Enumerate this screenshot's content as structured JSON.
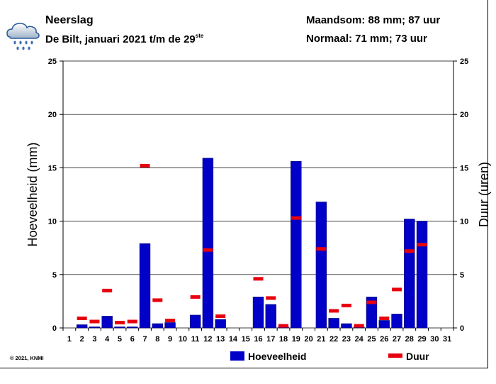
{
  "header": {
    "title": "Neerslag",
    "subtitle_main": "De Bilt, januari 2021 t/m de 29",
    "subtitle_sup": "ste",
    "maandsom": "Maandsom: 88 mm; 87 uur",
    "normaal": "Normaal: 71 mm; 73 uur"
  },
  "footer": {
    "copyright": "© 2021, KNMI"
  },
  "icon": "rain-cloud-icon",
  "colors": {
    "bar": "#0000c8",
    "duration": "#e8000d",
    "grid": "#000000"
  },
  "chart_data": {
    "type": "bar",
    "categories": [
      "1",
      "2",
      "3",
      "4",
      "5",
      "6",
      "7",
      "8",
      "9",
      "10",
      "11",
      "12",
      "13",
      "14",
      "15",
      "16",
      "17",
      "18",
      "19",
      "20",
      "21",
      "22",
      "23",
      "24",
      "25",
      "26",
      "27",
      "28",
      "29",
      "30",
      "31"
    ],
    "series": [
      {
        "name": "Hoeveelheid",
        "kind": "bar",
        "axis": "left",
        "values": [
          0,
          0.3,
          0.1,
          1.1,
          0.1,
          0.1,
          7.9,
          0.4,
          0.5,
          0,
          1.2,
          15.9,
          0.8,
          0,
          0,
          2.9,
          2.2,
          0.1,
          15.6,
          0,
          11.8,
          0.9,
          0.4,
          0.1,
          2.9,
          0.7,
          1.3,
          10.2,
          10.0,
          null,
          null
        ]
      },
      {
        "name": "Duur",
        "kind": "marker",
        "axis": "right",
        "values": [
          null,
          0.9,
          0.6,
          3.5,
          0.5,
          0.6,
          15.2,
          2.6,
          0.7,
          null,
          2.9,
          7.3,
          1.1,
          null,
          null,
          4.6,
          2.8,
          0.2,
          10.3,
          null,
          7.4,
          1.6,
          2.1,
          0.2,
          2.4,
          0.9,
          3.6,
          7.2,
          7.8,
          null,
          null
        ]
      }
    ],
    "ylabel": "Hoeveelheid (mm)",
    "y2label": "Duur (uren)",
    "ylim": [
      0,
      25
    ],
    "y2lim": [
      0,
      25
    ],
    "yticks": [
      0,
      5,
      10,
      15,
      20,
      25
    ],
    "legend": {
      "placement": "bottom",
      "entries": [
        "Hoeveelheid",
        "Duur"
      ]
    }
  }
}
